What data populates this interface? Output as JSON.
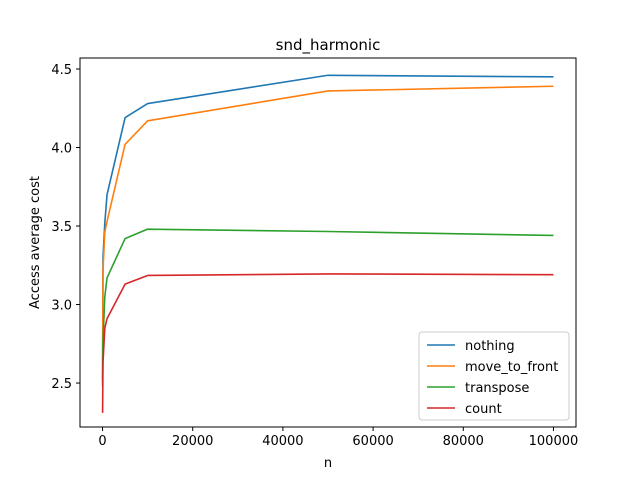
{
  "chart_data": {
    "type": "line",
    "title": "snd_harmonic",
    "xlabel": "n",
    "ylabel": "Access average cost",
    "xlim": [
      -5000,
      105000
    ],
    "ylim": [
      2.22,
      4.57
    ],
    "xticks": [
      0,
      20000,
      40000,
      60000,
      80000,
      100000
    ],
    "xtick_labels": [
      "0",
      "20000",
      "40000",
      "60000",
      "80000",
      "100000"
    ],
    "yticks": [
      2.5,
      3.0,
      3.5,
      4.0,
      4.5
    ],
    "ytick_labels": [
      "2.5",
      "3.0",
      "3.5",
      "4.0",
      "4.5"
    ],
    "grid": false,
    "legend_position": "lower-right",
    "x": [
      10,
      100,
      500,
      1000,
      5000,
      10000,
      50000,
      100000
    ],
    "series": [
      {
        "name": "nothing",
        "color": "#1f77b4",
        "values": [
          2.52,
          3.3,
          3.52,
          3.7,
          4.19,
          4.28,
          4.46,
          4.45
        ]
      },
      {
        "name": "move_to_front",
        "color": "#ff7f0e",
        "values": [
          2.5,
          3.22,
          3.46,
          3.53,
          4.02,
          4.17,
          4.36,
          4.39
        ]
      },
      {
        "name": "transpose",
        "color": "#2ca02c",
        "values": [
          2.48,
          2.77,
          3.05,
          3.17,
          3.42,
          3.48,
          3.465,
          3.44
        ]
      },
      {
        "name": "count",
        "color": "#d62728",
        "values": [
          2.31,
          2.63,
          2.85,
          2.91,
          3.13,
          3.185,
          3.195,
          3.19
        ]
      }
    ]
  }
}
